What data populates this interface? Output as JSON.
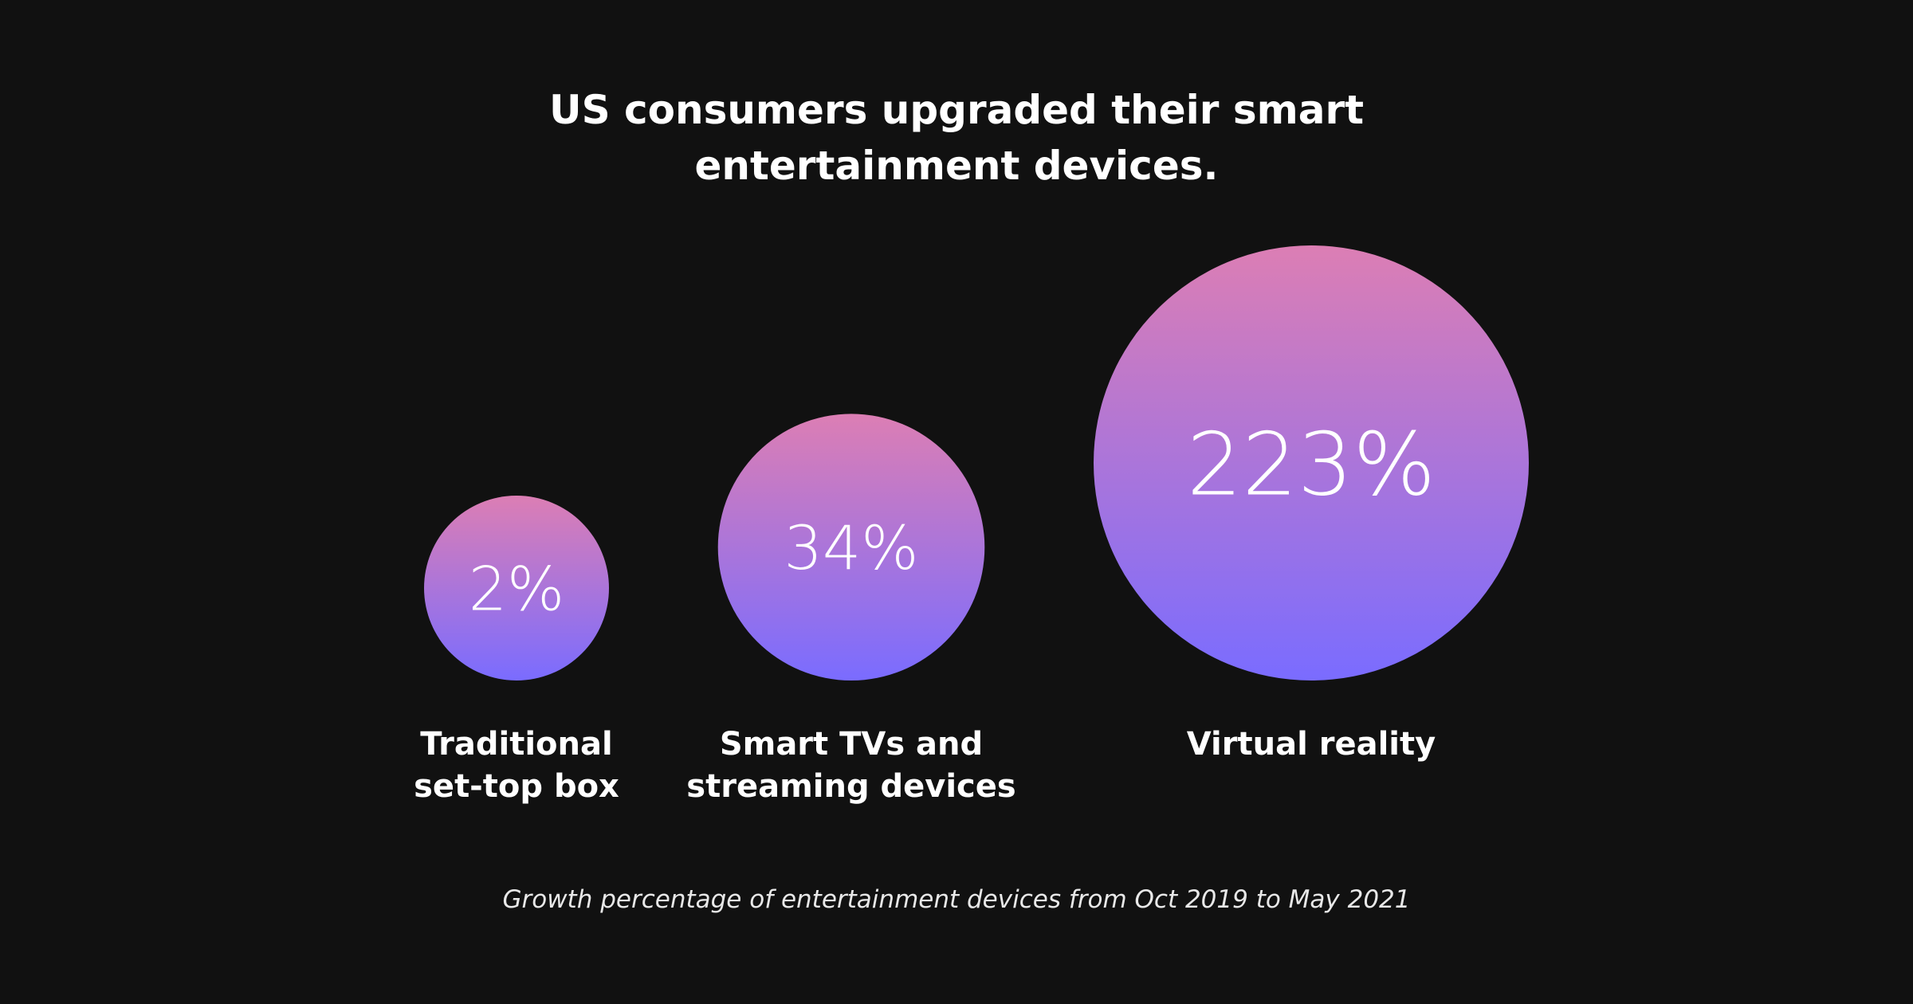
{
  "chart_data": {
    "type": "bubble",
    "title_lines": [
      "US consumers upgraded their smart",
      "entertainment devices."
    ],
    "categories": [
      {
        "label_lines": [
          "Traditional",
          "set-top box"
        ],
        "value": 2,
        "value_label": "2%"
      },
      {
        "label_lines": [
          "Smart TVs and",
          "streaming devices"
        ],
        "value": 34,
        "value_label": "34%"
      },
      {
        "label_lines": [
          "Virtual reality"
        ],
        "value": 223,
        "value_label": "223%"
      }
    ],
    "unit": "%",
    "caption": "Growth percentage of entertainment devices from Oct 2019 to May 2021",
    "colors": {
      "background": "#111111",
      "gradient_top": "#dc7eb4",
      "gradient_bottom": "#7a6cff",
      "text": "#ffffff"
    }
  }
}
